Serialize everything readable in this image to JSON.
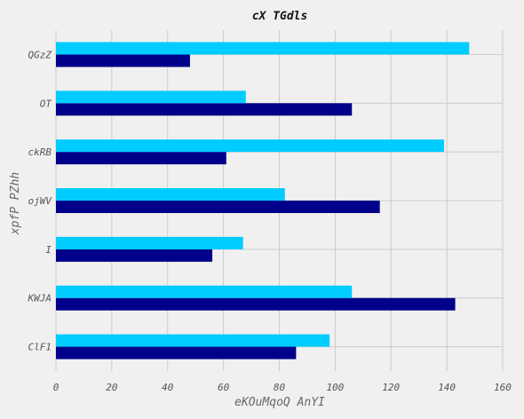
{
  "chart_data": {
    "type": "bar",
    "orientation": "horizontal",
    "title": "cX TGdls",
    "xlabel": "eKOuMqoQ AnYI",
    "ylabel": "xpfP PZhh",
    "categories": [
      "ClF1",
      "KWJA",
      "I",
      "ojWV",
      "ckRB",
      "OT",
      "QGzZ"
    ],
    "series": [
      {
        "color": "#00008b",
        "values": [
          86,
          143,
          56,
          116,
          61,
          106,
          48
        ]
      },
      {
        "color": "#00ccff",
        "values": [
          98,
          106,
          67,
          82,
          139,
          68,
          148
        ]
      }
    ],
    "xlim": [
      0,
      160
    ],
    "xticks": [
      0,
      20,
      40,
      60,
      80,
      100,
      120,
      140,
      160
    ],
    "grid": true
  }
}
